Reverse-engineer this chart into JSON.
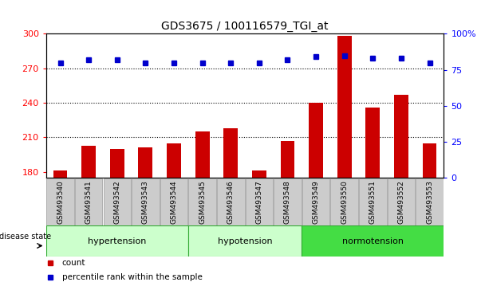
{
  "title": "GDS3675 / 100116579_TGI_at",
  "samples": [
    "GSM493540",
    "GSM493541",
    "GSM493542",
    "GSM493543",
    "GSM493544",
    "GSM493545",
    "GSM493546",
    "GSM493547",
    "GSM493548",
    "GSM493549",
    "GSM493550",
    "GSM493551",
    "GSM493552",
    "GSM493553"
  ],
  "counts": [
    181,
    203,
    200,
    201,
    205,
    215,
    218,
    181,
    207,
    240,
    298,
    236,
    247,
    205
  ],
  "percentiles": [
    80,
    82,
    82,
    80,
    80,
    80,
    80,
    80,
    82,
    84,
    85,
    83,
    83,
    80
  ],
  "groups": [
    {
      "label": "hypertension",
      "start": 0,
      "end": 5,
      "color": "#ccffcc"
    },
    {
      "label": "hypotension",
      "start": 5,
      "end": 9,
      "color": "#ccffcc"
    },
    {
      "label": "normotension",
      "start": 9,
      "end": 14,
      "color": "#44dd44"
    }
  ],
  "ylim_left": [
    175,
    300
  ],
  "ylim_right": [
    0,
    100
  ],
  "yticks_left": [
    180,
    210,
    240,
    270,
    300
  ],
  "yticks_right": [
    0,
    25,
    50,
    75,
    100
  ],
  "bar_color": "#cc0000",
  "dot_color": "#0000cc",
  "group_colors": [
    "#ccffcc",
    "#ccffcc",
    "#44dd44"
  ],
  "group_border_color": "#33aa33",
  "xtick_bg_color": "#cccccc",
  "xtick_border_color": "#999999"
}
